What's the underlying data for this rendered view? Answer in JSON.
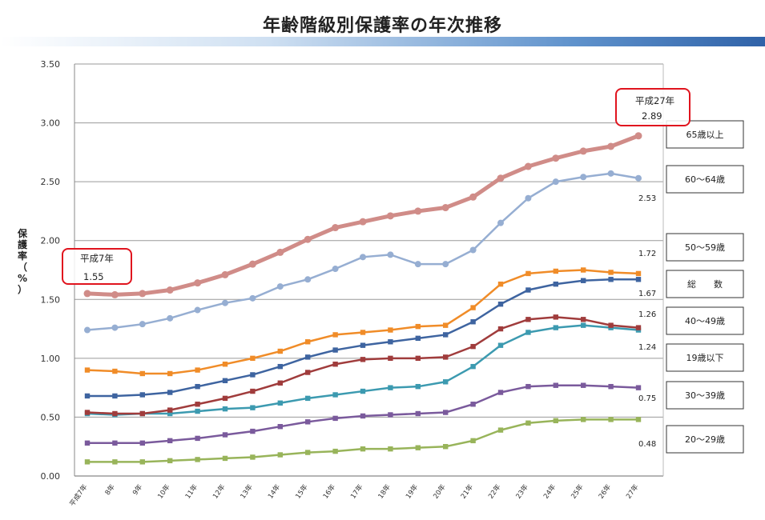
{
  "title": "年齢階級別保護率の年次推移",
  "chart_data": {
    "type": "line",
    "ylabel": "保護率（%）",
    "ylim": [
      0,
      3.5
    ],
    "yticks": [
      "0.00",
      "0.50",
      "1.00",
      "1.50",
      "2.00",
      "2.50",
      "3.00",
      "3.50"
    ],
    "grid": true,
    "categories": [
      "平成7年",
      "8年",
      "9年",
      "10年",
      "11年",
      "12年",
      "13年",
      "14年",
      "15年",
      "16年",
      "17年",
      "18年",
      "19年",
      "20年",
      "21年",
      "22年",
      "23年",
      "24年",
      "25年",
      "26年",
      "27年"
    ],
    "series": [
      {
        "name": "65歳以上",
        "color": "#d08c88",
        "marker": "circle",
        "width": 5,
        "values": [
          1.55,
          1.54,
          1.55,
          1.58,
          1.64,
          1.71,
          1.8,
          1.9,
          2.01,
          2.11,
          2.16,
          2.21,
          2.25,
          2.28,
          2.37,
          2.53,
          2.63,
          2.7,
          2.76,
          2.8,
          2.89
        ]
      },
      {
        "name": "60～64歳",
        "color": "#96aed2",
        "marker": "circle",
        "width": 2.5,
        "values": [
          1.24,
          1.26,
          1.29,
          1.34,
          1.41,
          1.47,
          1.51,
          1.61,
          1.67,
          1.76,
          1.86,
          1.88,
          1.8,
          1.8,
          1.92,
          2.15,
          2.36,
          2.5,
          2.54,
          2.57,
          2.53
        ]
      },
      {
        "name": "50～59歳",
        "color": "#f08c28",
        "marker": "square",
        "width": 2.5,
        "values": [
          0.9,
          0.89,
          0.87,
          0.87,
          0.9,
          0.95,
          1.0,
          1.06,
          1.14,
          1.2,
          1.22,
          1.24,
          1.27,
          1.28,
          1.43,
          1.63,
          1.72,
          1.74,
          1.75,
          1.73,
          1.72
        ]
      },
      {
        "name": "総数",
        "color": "#3e64a0",
        "marker": "square",
        "width": 2.5,
        "values": [
          0.68,
          0.68,
          0.69,
          0.71,
          0.76,
          0.81,
          0.86,
          0.93,
          1.01,
          1.07,
          1.11,
          1.14,
          1.17,
          1.2,
          1.31,
          1.46,
          1.58,
          1.63,
          1.66,
          1.67,
          1.67
        ]
      },
      {
        "name": "40～49歳",
        "color": "#a03c3c",
        "marker": "square",
        "width": 2.5,
        "values": [
          0.54,
          0.53,
          0.53,
          0.56,
          0.61,
          0.66,
          0.72,
          0.79,
          0.88,
          0.95,
          0.99,
          1.0,
          1.0,
          1.01,
          1.1,
          1.25,
          1.33,
          1.35,
          1.33,
          1.28,
          1.26
        ]
      },
      {
        "name": "19歳以下",
        "color": "#3c9ab0",
        "marker": "square",
        "width": 2.5,
        "values": [
          0.53,
          0.52,
          0.53,
          0.53,
          0.55,
          0.57,
          0.58,
          0.62,
          0.66,
          0.69,
          0.72,
          0.75,
          0.76,
          0.8,
          0.93,
          1.11,
          1.22,
          1.26,
          1.28,
          1.26,
          1.24
        ]
      },
      {
        "name": "30～39歳",
        "color": "#7a5a9c",
        "marker": "square",
        "width": 2.5,
        "values": [
          0.28,
          0.28,
          0.28,
          0.3,
          0.32,
          0.35,
          0.38,
          0.42,
          0.46,
          0.49,
          0.51,
          0.52,
          0.53,
          0.54,
          0.61,
          0.71,
          0.76,
          0.77,
          0.77,
          0.76,
          0.75
        ]
      },
      {
        "name": "20～29歳",
        "color": "#98b45a",
        "marker": "square",
        "width": 2.5,
        "values": [
          0.12,
          0.12,
          0.12,
          0.13,
          0.14,
          0.15,
          0.16,
          0.18,
          0.2,
          0.21,
          0.23,
          0.23,
          0.24,
          0.25,
          0.3,
          0.39,
          0.45,
          0.47,
          0.48,
          0.48,
          0.48
        ]
      }
    ],
    "end_labels": [
      "2.53",
      "1.72",
      "1.67",
      "1.26",
      "1.24",
      "0.75",
      "0.48"
    ],
    "legend_boxes": [
      "65歳以上",
      "60～64歳",
      "50～59歳",
      "総　　数",
      "40～49歳",
      "19歳以下",
      "30～39歳",
      "20～29歳"
    ],
    "callouts": [
      {
        "label": "平成7年",
        "value": "1.55"
      },
      {
        "label": "平成27年",
        "value": "2.89"
      }
    ],
    "callout_color": "#e0141e"
  }
}
